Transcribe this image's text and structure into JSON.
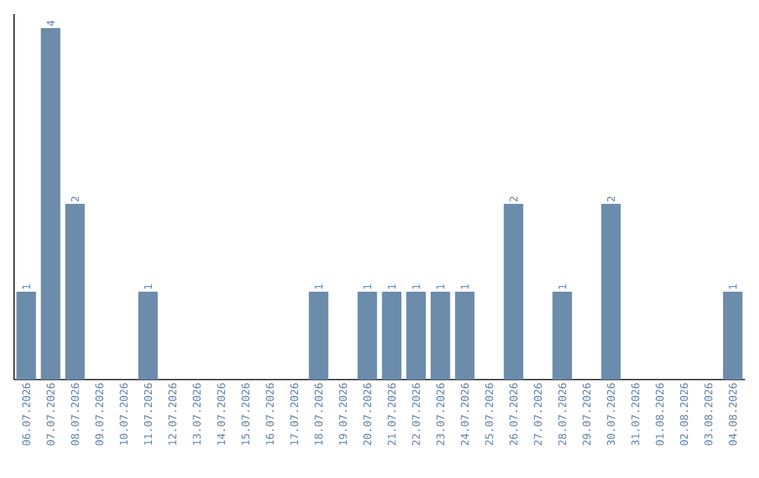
{
  "chart_data": {
    "type": "bar",
    "categories": [
      "06.07.2026",
      "07.07.2026",
      "08.07.2026",
      "09.07.2026",
      "10.07.2026",
      "11.07.2026",
      "12.07.2026",
      "13.07.2026",
      "14.07.2026",
      "15.07.2026",
      "16.07.2026",
      "17.07.2026",
      "18.07.2026",
      "19.07.2026",
      "20.07.2026",
      "21.07.2026",
      "22.07.2026",
      "23.07.2026",
      "24.07.2026",
      "25.07.2026",
      "26.07.2026",
      "27.07.2026",
      "28.07.2026",
      "29.07.2026",
      "30.07.2026",
      "31.07.2026",
      "01.08.2026",
      "02.08.2026",
      "03.08.2026",
      "04.08.2026"
    ],
    "values": [
      1,
      4,
      2,
      0,
      0,
      1,
      0,
      0,
      0,
      0,
      0,
      0,
      1,
      0,
      1,
      1,
      1,
      1,
      1,
      0,
      2,
      0,
      1,
      0,
      2,
      0,
      0,
      0,
      0,
      1
    ],
    "value_labels": [
      "1",
      "4",
      "2",
      null,
      null,
      "1",
      null,
      null,
      null,
      null,
      null,
      null,
      "1",
      null,
      "1",
      "1",
      "1",
      "1",
      "1",
      null,
      "2",
      null,
      "1",
      null,
      "2",
      null,
      null,
      null,
      null,
      "1"
    ],
    "color": "#6b8cab",
    "grid": false
  }
}
